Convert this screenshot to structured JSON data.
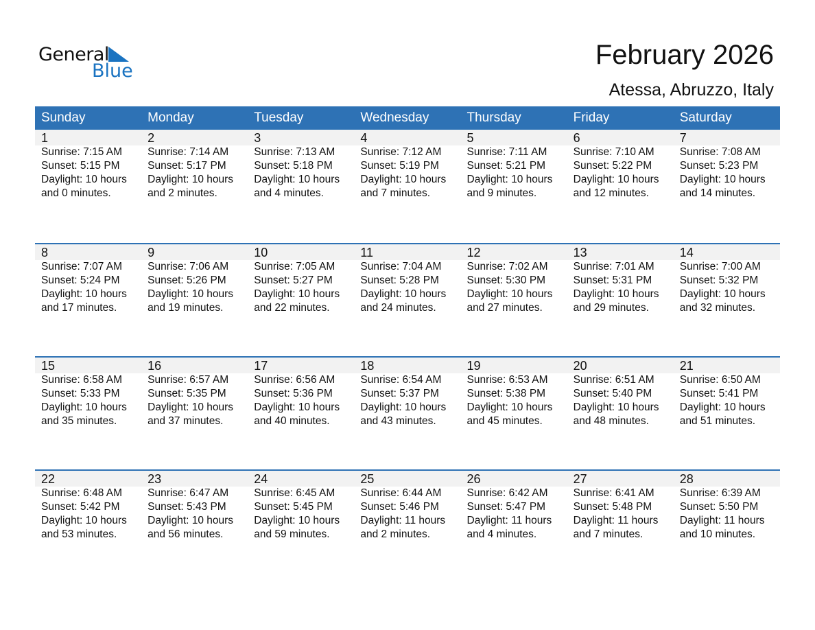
{
  "logo": {
    "line1": "General",
    "line2": "Blue"
  },
  "title": "February 2026",
  "location": "Atessa, Abruzzo, Italy",
  "colors": {
    "header": "#2e72b5",
    "logo_blue": "#1a73c1"
  },
  "weekdays": [
    "Sunday",
    "Monday",
    "Tuesday",
    "Wednesday",
    "Thursday",
    "Friday",
    "Saturday"
  ],
  "weeks": [
    [
      [
        "1",
        "Sunrise: 7:15 AM",
        "Sunset: 5:15 PM",
        "Daylight: 10 hours",
        "and 0 minutes."
      ],
      [
        "2",
        "Sunrise: 7:14 AM",
        "Sunset: 5:17 PM",
        "Daylight: 10 hours",
        "and 2 minutes."
      ],
      [
        "3",
        "Sunrise: 7:13 AM",
        "Sunset: 5:18 PM",
        "Daylight: 10 hours",
        "and 4 minutes."
      ],
      [
        "4",
        "Sunrise: 7:12 AM",
        "Sunset: 5:19 PM",
        "Daylight: 10 hours",
        "and 7 minutes."
      ],
      [
        "5",
        "Sunrise: 7:11 AM",
        "Sunset: 5:21 PM",
        "Daylight: 10 hours",
        "and 9 minutes."
      ],
      [
        "6",
        "Sunrise: 7:10 AM",
        "Sunset: 5:22 PM",
        "Daylight: 10 hours",
        "and 12 minutes."
      ],
      [
        "7",
        "Sunrise: 7:08 AM",
        "Sunset: 5:23 PM",
        "Daylight: 10 hours",
        "and 14 minutes."
      ]
    ],
    [
      [
        "8",
        "Sunrise: 7:07 AM",
        "Sunset: 5:24 PM",
        "Daylight: 10 hours",
        "and 17 minutes."
      ],
      [
        "9",
        "Sunrise: 7:06 AM",
        "Sunset: 5:26 PM",
        "Daylight: 10 hours",
        "and 19 minutes."
      ],
      [
        "10",
        "Sunrise: 7:05 AM",
        "Sunset: 5:27 PM",
        "Daylight: 10 hours",
        "and 22 minutes."
      ],
      [
        "11",
        "Sunrise: 7:04 AM",
        "Sunset: 5:28 PM",
        "Daylight: 10 hours",
        "and 24 minutes."
      ],
      [
        "12",
        "Sunrise: 7:02 AM",
        "Sunset: 5:30 PM",
        "Daylight: 10 hours",
        "and 27 minutes."
      ],
      [
        "13",
        "Sunrise: 7:01 AM",
        "Sunset: 5:31 PM",
        "Daylight: 10 hours",
        "and 29 minutes."
      ],
      [
        "14",
        "Sunrise: 7:00 AM",
        "Sunset: 5:32 PM",
        "Daylight: 10 hours",
        "and 32 minutes."
      ]
    ],
    [
      [
        "15",
        "Sunrise: 6:58 AM",
        "Sunset: 5:33 PM",
        "Daylight: 10 hours",
        "and 35 minutes."
      ],
      [
        "16",
        "Sunrise: 6:57 AM",
        "Sunset: 5:35 PM",
        "Daylight: 10 hours",
        "and 37 minutes."
      ],
      [
        "17",
        "Sunrise: 6:56 AM",
        "Sunset: 5:36 PM",
        "Daylight: 10 hours",
        "and 40 minutes."
      ],
      [
        "18",
        "Sunrise: 6:54 AM",
        "Sunset: 5:37 PM",
        "Daylight: 10 hours",
        "and 43 minutes."
      ],
      [
        "19",
        "Sunrise: 6:53 AM",
        "Sunset: 5:38 PM",
        "Daylight: 10 hours",
        "and 45 minutes."
      ],
      [
        "20",
        "Sunrise: 6:51 AM",
        "Sunset: 5:40 PM",
        "Daylight: 10 hours",
        "and 48 minutes."
      ],
      [
        "21",
        "Sunrise: 6:50 AM",
        "Sunset: 5:41 PM",
        "Daylight: 10 hours",
        "and 51 minutes."
      ]
    ],
    [
      [
        "22",
        "Sunrise: 6:48 AM",
        "Sunset: 5:42 PM",
        "Daylight: 10 hours",
        "and 53 minutes."
      ],
      [
        "23",
        "Sunrise: 6:47 AM",
        "Sunset: 5:43 PM",
        "Daylight: 10 hours",
        "and 56 minutes."
      ],
      [
        "24",
        "Sunrise: 6:45 AM",
        "Sunset: 5:45 PM",
        "Daylight: 10 hours",
        "and 59 minutes."
      ],
      [
        "25",
        "Sunrise: 6:44 AM",
        "Sunset: 5:46 PM",
        "Daylight: 11 hours",
        "and 2 minutes."
      ],
      [
        "26",
        "Sunrise: 6:42 AM",
        "Sunset: 5:47 PM",
        "Daylight: 11 hours",
        "and 4 minutes."
      ],
      [
        "27",
        "Sunrise: 6:41 AM",
        "Sunset: 5:48 PM",
        "Daylight: 11 hours",
        "and 7 minutes."
      ],
      [
        "28",
        "Sunrise: 6:39 AM",
        "Sunset: 5:50 PM",
        "Daylight: 11 hours",
        "and 10 minutes."
      ]
    ]
  ]
}
